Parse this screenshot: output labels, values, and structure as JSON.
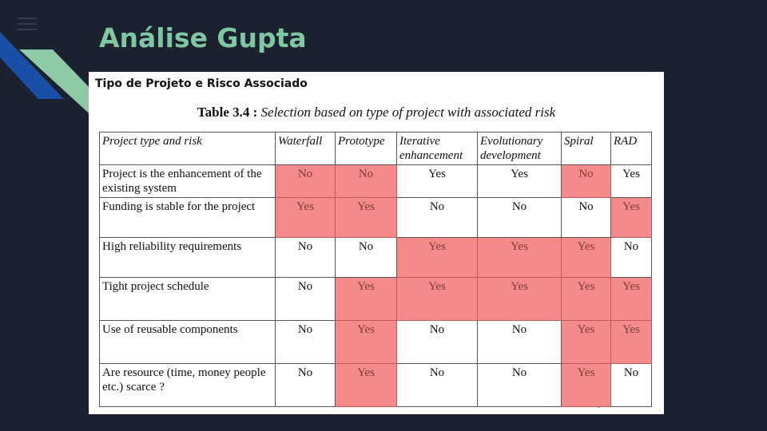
{
  "slide": {
    "title": "Análise Gupta"
  },
  "panel": {
    "heading": "Tipo de Projeto e Risco Associado",
    "caption_label": "Table 3.4 :",
    "caption_text": "Selection based on type of project with associated risk"
  },
  "table": {
    "headers": [
      "Project type and risk",
      "Waterfall",
      "Prototype",
      "Iterative enhancement",
      "Evolutionary development",
      "Spiral",
      "RAD"
    ],
    "rows": [
      {
        "label": "Project is the enhancement of the existing system",
        "values": [
          "No",
          "No",
          "Yes",
          "Yes",
          "No",
          "Yes"
        ],
        "highlighted": [
          true,
          true,
          false,
          false,
          true,
          false
        ]
      },
      {
        "label": "Funding is stable for the project",
        "values": [
          "Yes",
          "Yes",
          "No",
          "No",
          "No",
          "Yes"
        ],
        "highlighted": [
          true,
          true,
          false,
          false,
          false,
          true
        ]
      },
      {
        "label": "High reliability requirements",
        "values": [
          "No",
          "No",
          "Yes",
          "Yes",
          "Yes",
          "No"
        ],
        "highlighted": [
          false,
          false,
          true,
          true,
          true,
          false
        ]
      },
      {
        "label": "Tight project schedule",
        "values": [
          "No",
          "Yes",
          "Yes",
          "Yes",
          "Yes",
          "Yes"
        ],
        "highlighted": [
          false,
          true,
          true,
          true,
          true,
          true
        ]
      },
      {
        "label": "Use of reusable components",
        "values": [
          "No",
          "Yes",
          "No",
          "No",
          "Yes",
          "Yes"
        ],
        "highlighted": [
          false,
          true,
          false,
          false,
          true,
          true
        ]
      },
      {
        "label": "Are resource (time, money people etc.) scarce ?",
        "values": [
          "No",
          "Yes",
          "No",
          "No",
          "Yes",
          "No"
        ],
        "highlighted": [
          false,
          true,
          false,
          false,
          true,
          false
        ]
      }
    ]
  },
  "colors": {
    "background": "#1c2130",
    "title": "#7ec7a2",
    "highlight": "#f58a8a",
    "deco_blue": "#1a4fa8",
    "deco_green": "#8fcaa6"
  }
}
